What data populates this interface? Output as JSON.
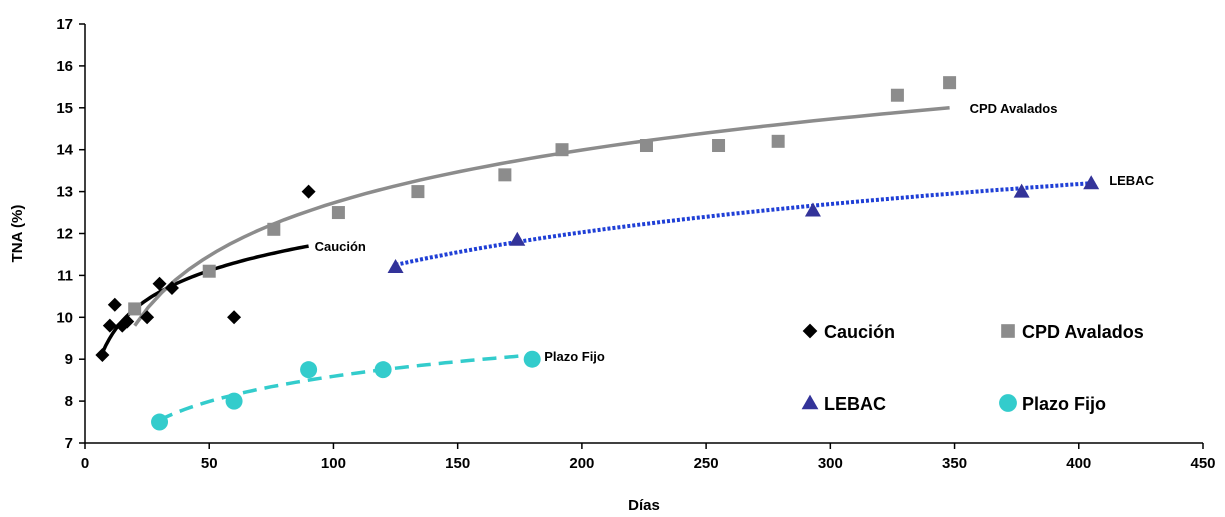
{
  "chart_data": {
    "type": "scatter",
    "xlabel": "Días",
    "ylabel": "TNA (%)",
    "xlim": [
      0,
      450
    ],
    "ylim": [
      7,
      17
    ],
    "xticks": [
      0,
      50,
      100,
      150,
      200,
      250,
      300,
      350,
      400,
      450
    ],
    "yticks": [
      7,
      8,
      9,
      10,
      11,
      12,
      13,
      14,
      15,
      16,
      17
    ],
    "grid": false,
    "legend_position": "bottom-right",
    "series": [
      {
        "name": "Caución",
        "marker": "diamond",
        "color": "#000000",
        "trend_style": "solid",
        "x": [
          7,
          10,
          12,
          15,
          17,
          25,
          30,
          35,
          60,
          90
        ],
        "y": [
          9.1,
          9.8,
          10.3,
          9.8,
          9.9,
          10.0,
          10.8,
          10.7,
          10.0,
          13.0
        ],
        "trend": {
          "x_start": 7,
          "x_end": 90,
          "y_start": 9.15,
          "y_end": 11.7
        },
        "annotation": "Caución"
      },
      {
        "name": "CPD Avalados",
        "marker": "square",
        "color": "#8c8c8c",
        "trend_style": "solid",
        "x": [
          20,
          50,
          76,
          102,
          134,
          169,
          192,
          226,
          255,
          279,
          327,
          348
        ],
        "y": [
          10.2,
          11.1,
          12.1,
          12.5,
          13.0,
          13.4,
          14.0,
          14.1,
          14.1,
          14.2,
          15.3,
          15.6
        ],
        "trend": {
          "x_start": 20,
          "x_end": 348,
          "y_start": 9.8,
          "y_end": 15.0
        },
        "annotation": "CPD Avalados"
      },
      {
        "name": "LEBAC",
        "marker": "triangle",
        "color": "#333399",
        "line_color": "#1f3fd6",
        "trend_style": "dotted",
        "x": [
          125,
          174,
          293,
          377,
          405
        ],
        "y": [
          11.2,
          11.85,
          12.55,
          13.0,
          13.2
        ],
        "trend": {
          "x_start": 125,
          "x_end": 405,
          "y_start": 11.25,
          "y_end": 13.2
        },
        "annotation": "LEBAC"
      },
      {
        "name": "Plazo Fijo",
        "marker": "circle",
        "color": "#33cccc",
        "trend_style": "dashed",
        "x": [
          30,
          60,
          90,
          120,
          180
        ],
        "y": [
          7.5,
          8.0,
          8.75,
          8.75,
          9.0
        ],
        "trend": {
          "x_start": 30,
          "x_end": 180,
          "y_start": 7.55,
          "y_end": 9.1
        },
        "annotation": "Plazo Fijo"
      }
    ]
  }
}
